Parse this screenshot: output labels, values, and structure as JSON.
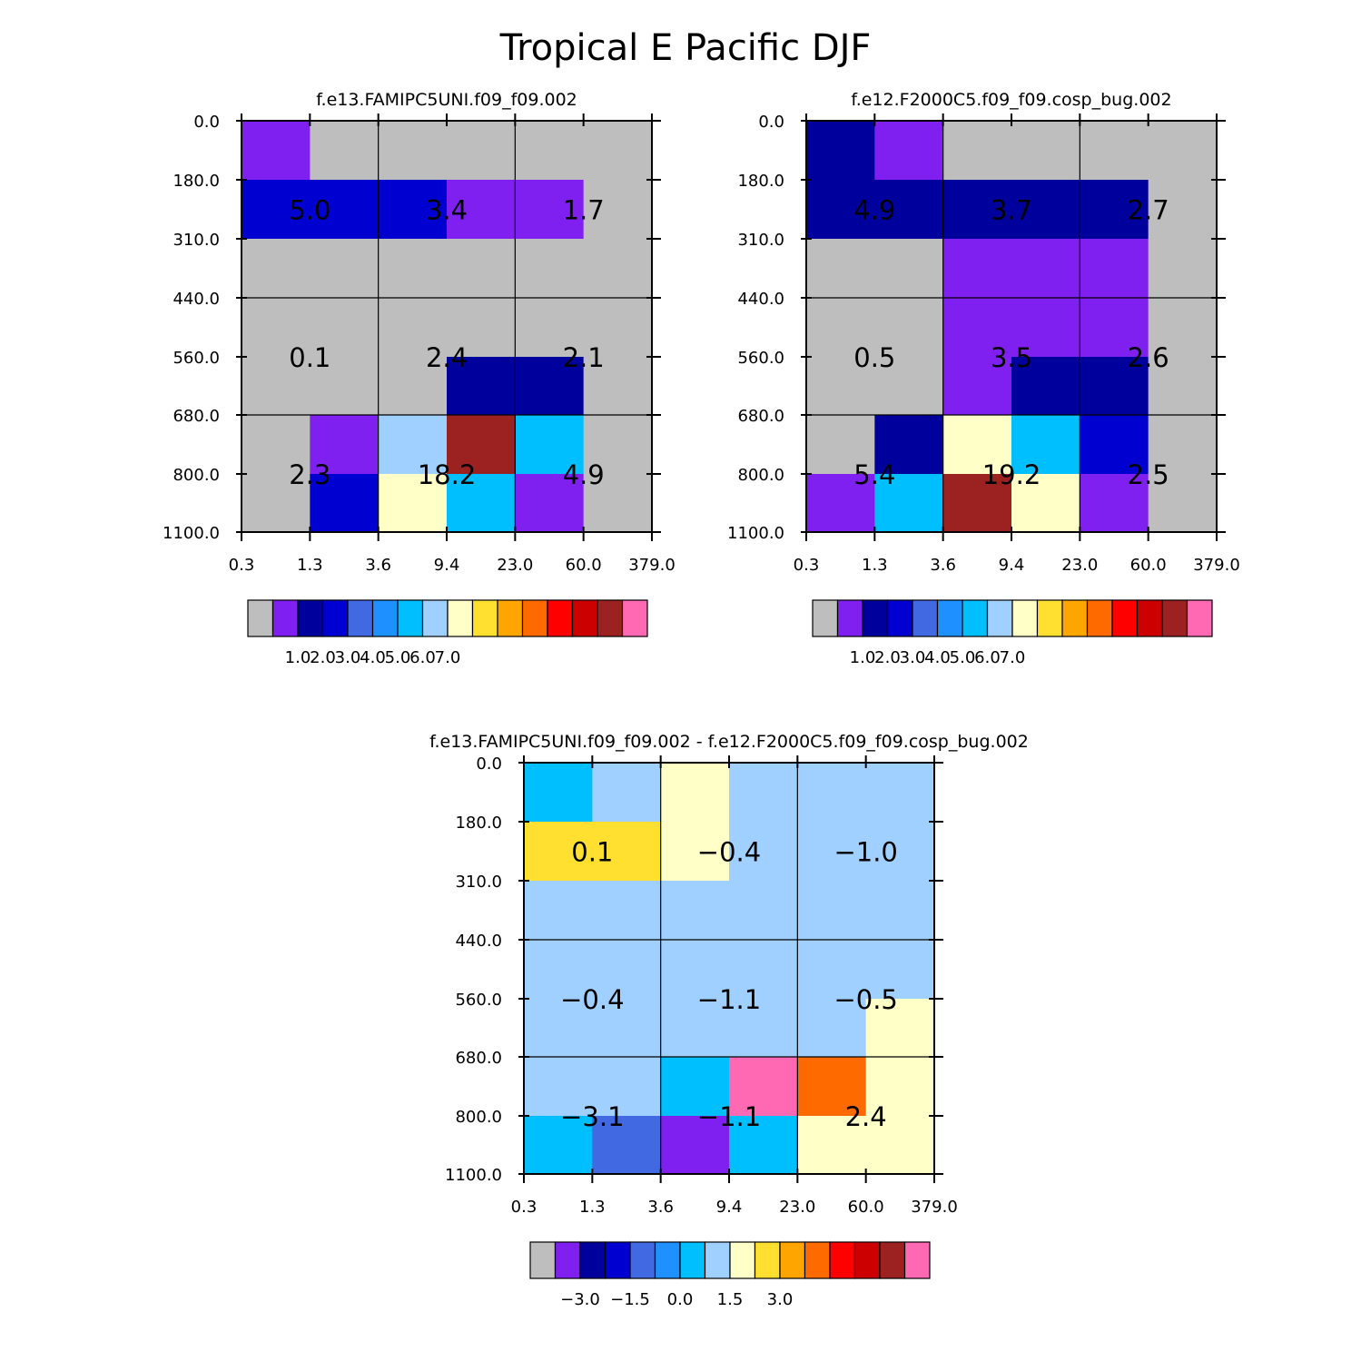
{
  "title": "Tropical E Pacific DJF",
  "x_tick_labels": [
    "0.3",
    "1.3",
    "3.6",
    "9.4",
    "23.0",
    "60.0",
    "379.0"
  ],
  "y_tick_labels": [
    "0.0",
    "180.0",
    "310.0",
    "440.0",
    "560.0",
    "680.0",
    "800.0",
    "1100.0"
  ],
  "colors": {
    "grey": "#bebebe",
    "purple": "#8020f0",
    "navy": "#00009c",
    "blue": "#0000d0",
    "royal": "#4169e1",
    "dodger": "#1e90ff",
    "sky": "#00bfff",
    "lightblue": "#a0d0ff",
    "cream": "#ffffc8",
    "gold": "#ffe030",
    "orange": "#ffa500",
    "darkorange": "#ff6a00",
    "red": "#ff0000",
    "crimson": "#cd0000",
    "brown": "#9c2222",
    "pink": "#ff69b4"
  },
  "colorbar_keys": [
    "grey",
    "purple",
    "navy",
    "blue",
    "royal",
    "dodger",
    "sky",
    "lightblue",
    "cream",
    "gold",
    "orange",
    "darkorange",
    "red",
    "crimson",
    "brown",
    "pink"
  ],
  "chart_data": [
    {
      "type": "heatmap",
      "title": "f.e13.FAMIPC5UNI.f09_f09.002",
      "x_bins": [
        "0.3",
        "1.3",
        "3.6",
        "9.4",
        "23.0",
        "60.0",
        "379.0"
      ],
      "y_bins": [
        "0.0",
        "180.0",
        "310.0",
        "440.0",
        "560.0",
        "680.0",
        "800.0",
        "1100.0"
      ],
      "cell_colors": [
        [
          "purple",
          "grey",
          "grey",
          "grey",
          "grey",
          "grey"
        ],
        [
          "blue",
          "blue",
          "blue",
          "purple",
          "purple",
          "grey"
        ],
        [
          "grey",
          "grey",
          "grey",
          "grey",
          "grey",
          "grey"
        ],
        [
          "grey",
          "grey",
          "grey",
          "grey",
          "grey",
          "grey"
        ],
        [
          "grey",
          "grey",
          "grey",
          "navy",
          "navy",
          "grey"
        ],
        [
          "grey",
          "purple",
          "lightblue",
          "brown",
          "sky",
          "grey"
        ],
        [
          "grey",
          "blue",
          "cream",
          "sky",
          "purple",
          "grey"
        ]
      ],
      "region_values": [
        [
          "5.0",
          "3.4",
          "1.7"
        ],
        [
          "0.1",
          "2.4",
          "2.1"
        ],
        [
          "2.3",
          "18.2",
          "4.9"
        ]
      ],
      "colorbar": {
        "colors": [
          "grey",
          "purple",
          "navy",
          "blue",
          "royal",
          "dodger",
          "sky",
          "lightblue",
          "cream",
          "gold",
          "orange",
          "darkorange",
          "red",
          "crimson",
          "brown",
          "pink"
        ],
        "labels": [
          "1.0",
          "2.0",
          "3.0",
          "4.0",
          "5.0",
          "6.0",
          "7.0"
        ]
      }
    },
    {
      "type": "heatmap",
      "title": "f.e12.F2000C5.f09_f09.cosp_bug.002",
      "x_bins": [
        "0.3",
        "1.3",
        "3.6",
        "9.4",
        "23.0",
        "60.0",
        "379.0"
      ],
      "y_bins": [
        "0.0",
        "180.0",
        "310.0",
        "440.0",
        "560.0",
        "680.0",
        "800.0",
        "1100.0"
      ],
      "cell_colors": [
        [
          "navy",
          "purple",
          "grey",
          "grey",
          "grey",
          "grey"
        ],
        [
          "navy",
          "navy",
          "navy",
          "navy",
          "navy",
          "grey"
        ],
        [
          "grey",
          "grey",
          "purple",
          "purple",
          "purple",
          "grey"
        ],
        [
          "grey",
          "grey",
          "purple",
          "purple",
          "purple",
          "grey"
        ],
        [
          "grey",
          "grey",
          "purple",
          "navy",
          "navy",
          "grey"
        ],
        [
          "grey",
          "navy",
          "cream",
          "sky",
          "blue",
          "grey"
        ],
        [
          "purple",
          "sky",
          "brown",
          "cream",
          "purple",
          "grey"
        ]
      ],
      "region_values": [
        [
          "4.9",
          "3.7",
          "2.7"
        ],
        [
          "0.5",
          "3.5",
          "2.6"
        ],
        [
          "5.4",
          "19.2",
          "2.5"
        ]
      ],
      "colorbar": {
        "colors": [
          "grey",
          "purple",
          "navy",
          "blue",
          "royal",
          "dodger",
          "sky",
          "lightblue",
          "cream",
          "gold",
          "orange",
          "darkorange",
          "red",
          "crimson",
          "brown",
          "pink"
        ],
        "labels": [
          "1.0",
          "2.0",
          "3.0",
          "4.0",
          "5.0",
          "6.0",
          "7.0"
        ]
      }
    },
    {
      "type": "heatmap",
      "title": "f.e13.FAMIPC5UNI.f09_f09.002 - f.e12.F2000C5.f09_f09.cosp_bug.002",
      "x_bins": [
        "0.3",
        "1.3",
        "3.6",
        "9.4",
        "23.0",
        "60.0",
        "379.0"
      ],
      "y_bins": [
        "0.0",
        "180.0",
        "310.0",
        "440.0",
        "560.0",
        "680.0",
        "800.0",
        "1100.0"
      ],
      "cell_colors": [
        [
          "sky",
          "lightblue",
          "cream",
          "lightblue",
          "lightblue",
          "lightblue"
        ],
        [
          "gold",
          "gold",
          "cream",
          "lightblue",
          "lightblue",
          "lightblue"
        ],
        [
          "lightblue",
          "lightblue",
          "lightblue",
          "lightblue",
          "lightblue",
          "lightblue"
        ],
        [
          "lightblue",
          "lightblue",
          "lightblue",
          "lightblue",
          "lightblue",
          "lightblue"
        ],
        [
          "lightblue",
          "lightblue",
          "lightblue",
          "lightblue",
          "lightblue",
          "cream"
        ],
        [
          "lightblue",
          "lightblue",
          "sky",
          "pink",
          "darkorange",
          "cream"
        ],
        [
          "sky",
          "royal",
          "purple",
          "sky",
          "cream",
          "cream"
        ]
      ],
      "region_values": [
        [
          "0.1",
          "−0.4",
          "−1.0"
        ],
        [
          "−0.4",
          "−1.1",
          "−0.5"
        ],
        [
          "−3.1",
          "−1.1",
          "2.4"
        ]
      ],
      "colorbar": {
        "colors": [
          "grey",
          "purple",
          "navy",
          "blue",
          "royal",
          "dodger",
          "sky",
          "lightblue",
          "cream",
          "gold",
          "orange",
          "darkorange",
          "red",
          "crimson",
          "brown",
          "pink"
        ],
        "labels": [
          "−3.0",
          "−1.5",
          "0.0",
          "1.5",
          "3.0"
        ]
      }
    }
  ]
}
